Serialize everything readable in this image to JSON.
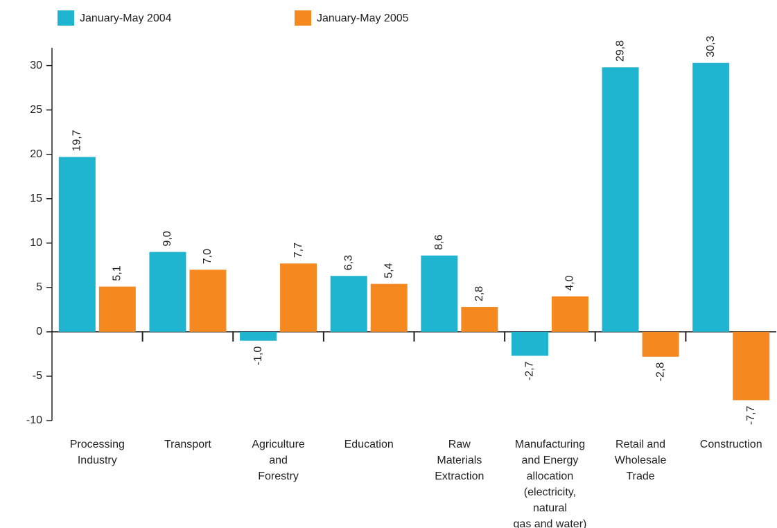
{
  "chart_data": {
    "type": "bar",
    "categories": [
      "Processing\nIndustry",
      "Transport",
      "Agriculture\nand\nForestry",
      "Education",
      "Raw\nMaterials\nExtraction",
      "Manufacturing\nand Energy\nallocation\n(electricity, natural\ngas and water)",
      "Retail and\nWholesale\nTrade",
      "Construction"
    ],
    "series": [
      {
        "name": "January-May 2004",
        "color": "#1fb5d0",
        "values": [
          19.7,
          9.0,
          -1.0,
          6.3,
          8.6,
          -2.7,
          29.8,
          30.3
        ],
        "value_labels": [
          "19,7",
          "9,0",
          "-1,0",
          "6,3",
          "8,6",
          "-2,7",
          "29,8",
          "30,3"
        ]
      },
      {
        "name": "January-May 2005",
        "color": "#f5891f",
        "values": [
          5.1,
          7.0,
          7.7,
          5.4,
          2.8,
          4.0,
          -2.8,
          -7.7
        ],
        "value_labels": [
          "5,1",
          "7,0",
          "7,7",
          "5,4",
          "2,8",
          "4,0",
          "-2,8",
          "-7,7"
        ]
      }
    ],
    "ylim": [
      -10,
      32
    ],
    "yticks": [
      -10,
      -5,
      0,
      5,
      10,
      15,
      20,
      25,
      30
    ],
    "legend": "top"
  }
}
